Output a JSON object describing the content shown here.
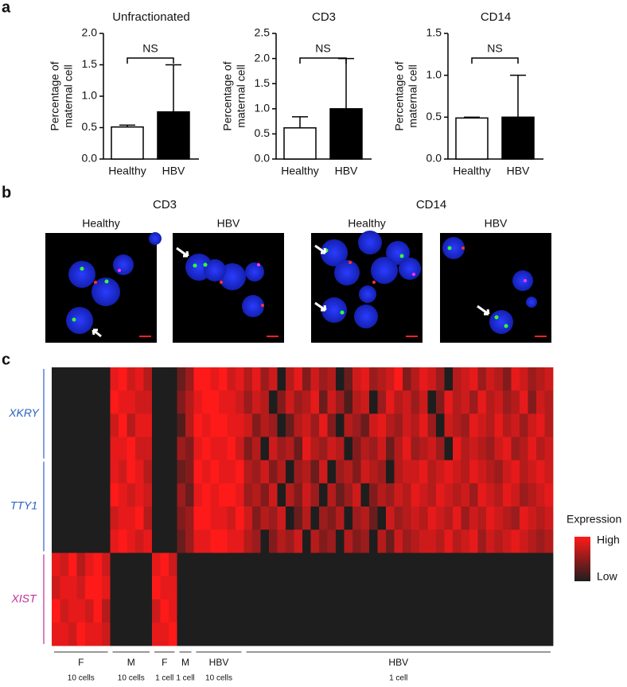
{
  "panel_labels": [
    "a",
    "b",
    "c"
  ],
  "chart_data": [
    {
      "type": "bar",
      "title": "Unfractionated",
      "ylabel": [
        "Percentage of",
        "maternal cell"
      ],
      "categories": [
        "Healthy",
        "HBV"
      ],
      "values": [
        0.51,
        0.75
      ],
      "errors": [
        0.03,
        0.75
      ],
      "colors": [
        "#ffffff",
        "#000000"
      ],
      "ylim": [
        0,
        2
      ],
      "yticks": [
        {
          "value": 0,
          "label": "0.0"
        },
        0.5,
        {
          "value": 1,
          "label": "1.0"
        },
        1.5,
        {
          "value": 2,
          "label": "2.0"
        }
      ],
      "annotation": "NS"
    },
    {
      "type": "bar",
      "title": "CD3",
      "ylabel": [
        "Percentage of",
        "maternal cell"
      ],
      "categories": [
        "Healthy",
        "HBV"
      ],
      "values": [
        0.62,
        1.0
      ],
      "errors": [
        0.22,
        1.0
      ],
      "colors": [
        "#ffffff",
        "#000000"
      ],
      "ylim": [
        0,
        2.5
      ],
      "yticks": [
        {
          "value": 0,
          "label": "0.0"
        },
        0.5,
        {
          "value": 1,
          "label": "1.0"
        },
        1.5,
        {
          "value": 2,
          "label": "2.0"
        },
        2.5
      ],
      "annotation": "NS"
    },
    {
      "type": "bar",
      "title": "CD14",
      "ylabel": [
        "Percentage of",
        "maternal cell"
      ],
      "categories": [
        "Healthy",
        "HBV"
      ],
      "values": [
        0.49,
        0.5
      ],
      "errors": [
        0.01,
        0.5
      ],
      "colors": [
        "#ffffff",
        "#000000"
      ],
      "ylim": [
        0,
        1.5
      ],
      "yticks": [
        {
          "value": 0,
          "label": "0.0"
        },
        0.5,
        {
          "value": 1,
          "label": "1.0"
        },
        1.5
      ],
      "annotation": "NS"
    },
    {
      "type": "heatmap",
      "colors": [
        "#1e1e1e",
        "#ff1a1a"
      ],
      "vlim": [
        0,
        9
      ],
      "colorbar": {
        "title": "Expression",
        "high": "High",
        "low": "Low"
      },
      "row_groups": [
        {
          "label": "XKRY",
          "size": 4,
          "color": "#2a62c4"
        },
        {
          "label": "TTY1",
          "size": 4,
          "color": "#2a62c4"
        },
        {
          "label": "XIST",
          "size": 4,
          "color": "#c42a9a"
        }
      ],
      "column_groups": [
        {
          "label": "F",
          "sublabel": "10 cells",
          "size": 7
        },
        {
          "label": "M",
          "sublabel": "10 cells",
          "size": 5
        },
        {
          "label": "F",
          "sublabel": "1 cell",
          "size": 3
        },
        {
          "label": "M",
          "sublabel": "1 cell",
          "size": 2
        },
        {
          "label": "HBV",
          "sublabel": "10 cells",
          "size": 6
        },
        {
          "label": "HBV",
          "sublabel": "1 cell",
          "size": 37
        }
      ],
      "rows": [
        [
          0,
          0,
          0,
          0,
          0,
          0,
          0,
          8,
          9,
          7,
          8,
          6,
          0,
          0,
          0,
          3,
          5,
          9,
          9,
          8,
          9,
          7,
          8,
          6,
          8,
          5,
          7,
          0,
          6,
          8,
          4,
          7,
          5,
          6,
          0,
          3,
          7,
          8,
          5,
          6,
          7,
          9,
          4,
          6,
          8,
          7,
          5,
          0,
          6,
          7,
          8,
          5,
          7,
          6,
          4,
          8,
          7,
          5,
          6,
          7
        ],
        [
          0,
          0,
          0,
          0,
          0,
          0,
          0,
          9,
          8,
          8,
          7,
          7,
          0,
          0,
          0,
          4,
          6,
          8,
          9,
          9,
          8,
          8,
          7,
          5,
          7,
          6,
          0,
          4,
          7,
          5,
          6,
          8,
          3,
          7,
          5,
          2,
          6,
          7,
          0,
          5,
          8,
          6,
          7,
          5,
          7,
          0,
          4,
          8,
          6,
          7,
          5,
          8,
          6,
          7,
          5,
          6,
          8,
          4,
          7,
          6
        ],
        [
          0,
          0,
          0,
          0,
          0,
          0,
          0,
          7,
          9,
          6,
          8,
          8,
          0,
          0,
          0,
          2,
          6,
          9,
          8,
          9,
          9,
          8,
          8,
          7,
          4,
          6,
          5,
          0,
          3,
          6,
          7,
          5,
          8,
          4,
          0,
          6,
          5,
          3,
          7,
          8,
          6,
          5,
          7,
          6,
          8,
          5,
          0,
          7,
          6,
          5,
          8,
          7,
          6,
          8,
          6,
          7,
          5,
          7,
          8,
          6
        ],
        [
          0,
          0,
          0,
          0,
          0,
          0,
          0,
          8,
          8,
          9,
          7,
          7,
          0,
          0,
          0,
          5,
          4,
          8,
          9,
          8,
          8,
          9,
          7,
          4,
          6,
          0,
          7,
          5,
          6,
          3,
          8,
          6,
          5,
          7,
          6,
          0,
          4,
          6,
          5,
          7,
          3,
          6,
          8,
          5,
          6,
          7,
          5,
          0,
          8,
          6,
          7,
          6,
          5,
          7,
          8,
          5,
          6,
          8,
          6,
          7
        ],
        [
          0,
          0,
          0,
          0,
          0,
          0,
          0,
          8,
          7,
          9,
          8,
          6,
          0,
          0,
          0,
          3,
          4,
          9,
          8,
          9,
          8,
          8,
          9,
          6,
          5,
          7,
          4,
          6,
          0,
          5,
          6,
          3,
          7,
          0,
          5,
          6,
          4,
          7,
          6,
          5,
          0,
          6,
          7,
          7,
          8,
          6,
          7,
          8,
          7,
          6,
          8,
          7,
          6,
          5,
          7,
          8,
          6,
          7,
          8,
          7
        ],
        [
          0,
          0,
          0,
          0,
          0,
          0,
          0,
          9,
          8,
          7,
          8,
          7,
          0,
          0,
          0,
          5,
          3,
          8,
          9,
          8,
          9,
          9,
          8,
          5,
          6,
          4,
          7,
          0,
          6,
          4,
          7,
          5,
          0,
          6,
          3,
          5,
          7,
          0,
          4,
          6,
          5,
          7,
          6,
          8,
          7,
          6,
          8,
          7,
          6,
          7,
          5,
          8,
          7,
          6,
          8,
          7,
          5,
          6,
          7,
          8
        ],
        [
          0,
          0,
          0,
          0,
          0,
          0,
          0,
          7,
          8,
          8,
          9,
          6,
          0,
          0,
          0,
          4,
          5,
          9,
          9,
          8,
          8,
          7,
          9,
          7,
          4,
          6,
          5,
          7,
          0,
          3,
          6,
          0,
          5,
          4,
          6,
          0,
          5,
          6,
          3,
          0,
          7,
          5,
          6,
          7,
          6,
          8,
          7,
          6,
          8,
          5,
          7,
          6,
          8,
          7,
          6,
          5,
          8,
          7,
          6,
          7
        ],
        [
          0,
          0,
          0,
          0,
          0,
          0,
          0,
          8,
          9,
          8,
          7,
          8,
          0,
          0,
          0,
          3,
          5,
          8,
          8,
          9,
          9,
          8,
          8,
          6,
          5,
          0,
          4,
          6,
          5,
          7,
          0,
          6,
          4,
          5,
          0,
          6,
          4,
          5,
          0,
          6,
          3,
          7,
          5,
          6,
          7,
          7,
          6,
          8,
          6,
          7,
          8,
          5,
          7,
          6,
          7,
          8,
          7,
          6,
          5,
          6
        ],
        [
          8,
          7,
          9,
          6,
          8,
          9,
          7,
          0,
          0,
          0,
          0,
          0,
          8,
          9,
          7,
          0,
          0,
          0,
          0,
          0,
          0,
          0,
          0,
          0,
          0,
          0,
          0,
          0,
          0,
          0,
          0,
          0,
          0,
          0,
          0,
          0,
          0,
          0,
          0,
          0,
          0,
          0,
          0,
          0,
          0,
          0,
          0,
          0,
          0,
          0,
          0,
          0,
          0,
          0,
          0,
          0,
          0,
          0,
          0,
          0
        ],
        [
          7,
          8,
          8,
          7,
          9,
          9,
          8,
          0,
          0,
          0,
          0,
          0,
          9,
          8,
          8,
          0,
          0,
          0,
          0,
          0,
          0,
          0,
          0,
          0,
          0,
          0,
          0,
          0,
          0,
          0,
          0,
          0,
          0,
          0,
          0,
          0,
          0,
          0,
          0,
          0,
          0,
          0,
          0,
          0,
          0,
          0,
          0,
          0,
          0,
          0,
          0,
          0,
          0,
          0,
          0,
          0,
          0,
          0,
          0,
          0
        ],
        [
          9,
          7,
          8,
          8,
          7,
          9,
          6,
          0,
          0,
          0,
          0,
          0,
          7,
          9,
          8,
          0,
          0,
          0,
          0,
          0,
          0,
          0,
          0,
          0,
          0,
          0,
          0,
          0,
          0,
          0,
          0,
          0,
          0,
          0,
          0,
          0,
          0,
          0,
          0,
          0,
          0,
          0,
          0,
          0,
          0,
          0,
          0,
          0,
          0,
          0,
          0,
          0,
          0,
          0,
          0,
          0,
          0,
          0,
          0,
          0
        ],
        [
          8,
          8,
          7,
          9,
          8,
          8,
          7,
          0,
          0,
          0,
          0,
          0,
          8,
          8,
          9,
          0,
          0,
          0,
          0,
          0,
          0,
          0,
          0,
          0,
          0,
          0,
          0,
          0,
          0,
          0,
          0,
          0,
          0,
          0,
          0,
          0,
          0,
          0,
          0,
          0,
          0,
          0,
          0,
          0,
          0,
          0,
          0,
          0,
          0,
          0,
          0,
          0,
          0,
          0,
          0,
          0,
          0,
          0,
          0,
          0
        ]
      ]
    }
  ],
  "panel_b": {
    "groups": [
      {
        "title": "CD3",
        "images": [
          "Healthy",
          "HBV"
        ]
      },
      {
        "title": "CD14",
        "images": [
          "Healthy",
          "HBV"
        ]
      }
    ]
  }
}
